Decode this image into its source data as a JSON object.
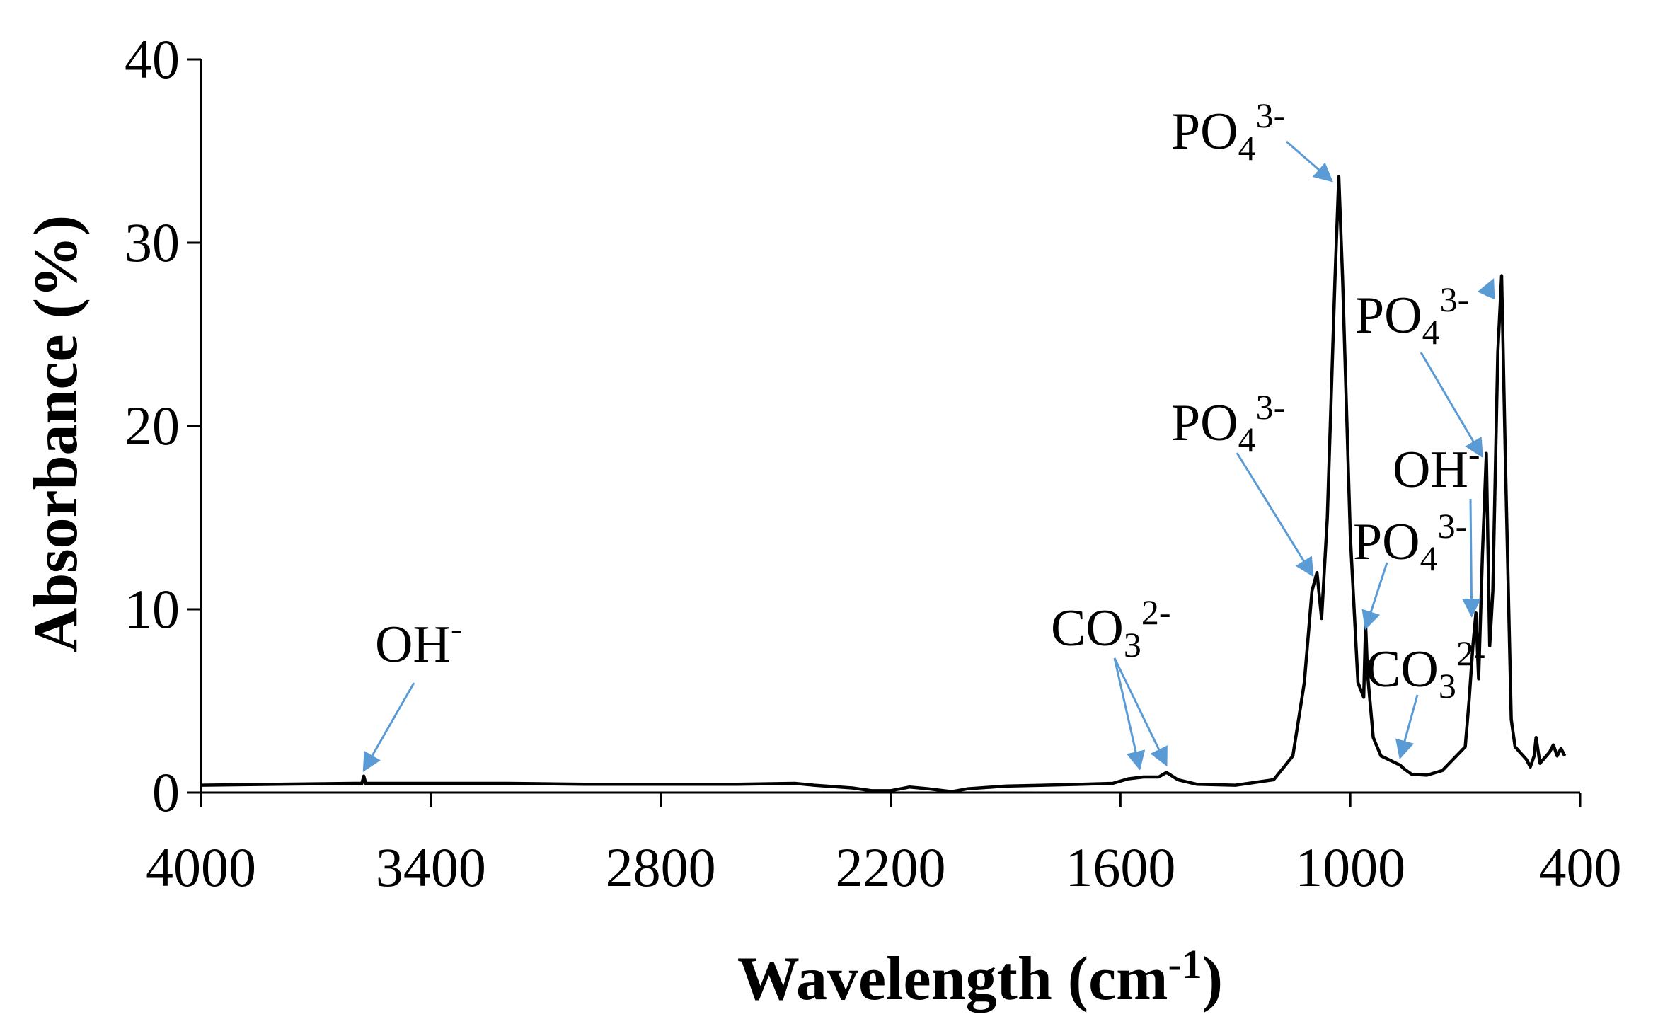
{
  "chart_data": {
    "type": "line",
    "title": "",
    "xlabel": {
      "text": "Wavelength (cm",
      "sup": "-1",
      "close": ")"
    },
    "ylabel": "Absorbance (%)",
    "xlim": [
      4000,
      400
    ],
    "ylim": [
      0,
      40
    ],
    "x_reversed": true,
    "grid": false,
    "legend": "none",
    "x_ticks": [
      4000,
      3400,
      2800,
      2200,
      1600,
      1000,
      400
    ],
    "y_ticks": [
      0,
      10,
      20,
      30,
      40
    ],
    "line_color": "#000000",
    "arrow_color": "#5B9BD5",
    "series": [
      {
        "points": [
          [
            4000,
            0.4
          ],
          [
            3800,
            0.45
          ],
          [
            3600,
            0.5
          ],
          [
            3580,
            0.5
          ],
          [
            3575,
            0.9
          ],
          [
            3570,
            0.5
          ],
          [
            3400,
            0.5
          ],
          [
            3200,
            0.5
          ],
          [
            3000,
            0.45
          ],
          [
            2800,
            0.45
          ],
          [
            2600,
            0.45
          ],
          [
            2450,
            0.5
          ],
          [
            2400,
            0.4
          ],
          [
            2300,
            0.25
          ],
          [
            2250,
            0.1
          ],
          [
            2200,
            0.1
          ],
          [
            2150,
            0.3
          ],
          [
            2100,
            0.2
          ],
          [
            2040,
            0.05
          ],
          [
            2000,
            0.2
          ],
          [
            1900,
            0.35
          ],
          [
            1800,
            0.4
          ],
          [
            1700,
            0.45
          ],
          [
            1620,
            0.5
          ],
          [
            1580,
            0.75
          ],
          [
            1540,
            0.85
          ],
          [
            1500,
            0.85
          ],
          [
            1480,
            1.1
          ],
          [
            1450,
            0.7
          ],
          [
            1400,
            0.45
          ],
          [
            1300,
            0.4
          ],
          [
            1200,
            0.7
          ],
          [
            1150,
            2.0
          ],
          [
            1120,
            6.0
          ],
          [
            1100,
            11.0
          ],
          [
            1087,
            12.0
          ],
          [
            1075,
            9.5
          ],
          [
            1060,
            15.0
          ],
          [
            1040,
            28.0
          ],
          [
            1030,
            33.6
          ],
          [
            1020,
            28.0
          ],
          [
            1000,
            14.0
          ],
          [
            980,
            6.0
          ],
          [
            965,
            5.2
          ],
          [
            960,
            9.2
          ],
          [
            955,
            6.5
          ],
          [
            940,
            3.0
          ],
          [
            920,
            2.0
          ],
          [
            900,
            1.8
          ],
          [
            880,
            1.6
          ],
          [
            870,
            1.5
          ],
          [
            860,
            1.3
          ],
          [
            840,
            1.0
          ],
          [
            800,
            0.95
          ],
          [
            760,
            1.2
          ],
          [
            700,
            2.5
          ],
          [
            690,
            5.0
          ],
          [
            680,
            8.0
          ],
          [
            672,
            9.8
          ],
          [
            665,
            6.2
          ],
          [
            655,
            13.0
          ],
          [
            645,
            18.5
          ],
          [
            636,
            8.0
          ],
          [
            628,
            11.0
          ],
          [
            615,
            24.0
          ],
          [
            605,
            28.2
          ],
          [
            595,
            18.0
          ],
          [
            580,
            4.0
          ],
          [
            570,
            2.5
          ],
          [
            540,
            1.8
          ],
          [
            530,
            1.4
          ],
          [
            520,
            2.0
          ],
          [
            515,
            3.0
          ],
          [
            505,
            1.6
          ],
          [
            480,
            2.2
          ],
          [
            470,
            2.6
          ],
          [
            460,
            2.0
          ],
          [
            450,
            2.4
          ],
          [
            440,
            2.0
          ]
        ]
      }
    ],
    "annotations": [
      {
        "label": "OH",
        "sup": "-",
        "sub": "",
        "x_value": 3575,
        "y_value": 0.9
      },
      {
        "label": "CO",
        "sub": "3",
        "sup": "2-",
        "x_value": 1550,
        "y_value": 1.0
      },
      {
        "label": "CO",
        "sub": "3",
        "sup": "2-",
        "x_value": 1480,
        "y_value": 1.2
      },
      {
        "label": "PO",
        "sub": "4",
        "sup": "3-",
        "x_value": 1030,
        "y_value": 33.6
      },
      {
        "label": "PO",
        "sub": "4",
        "sup": "3-",
        "x_value": 1087,
        "y_value": 12.0
      },
      {
        "label": "PO",
        "sub": "4",
        "sup": "3-",
        "x_value": 960,
        "y_value": 9.2
      },
      {
        "label": "CO",
        "sub": "3",
        "sup": "2-",
        "x_value": 870,
        "y_value": 1.6
      },
      {
        "label": "OH",
        "sup": "-",
        "sub": "",
        "x_value": 672,
        "y_value": 9.8
      },
      {
        "label": "PO",
        "sub": "4",
        "sup": "3-",
        "x_value": 645,
        "y_value": 18.5
      },
      {
        "label": "PO",
        "sub": "4",
        "sup": "3-",
        "x_value": 605,
        "y_value": 28.2
      }
    ]
  }
}
